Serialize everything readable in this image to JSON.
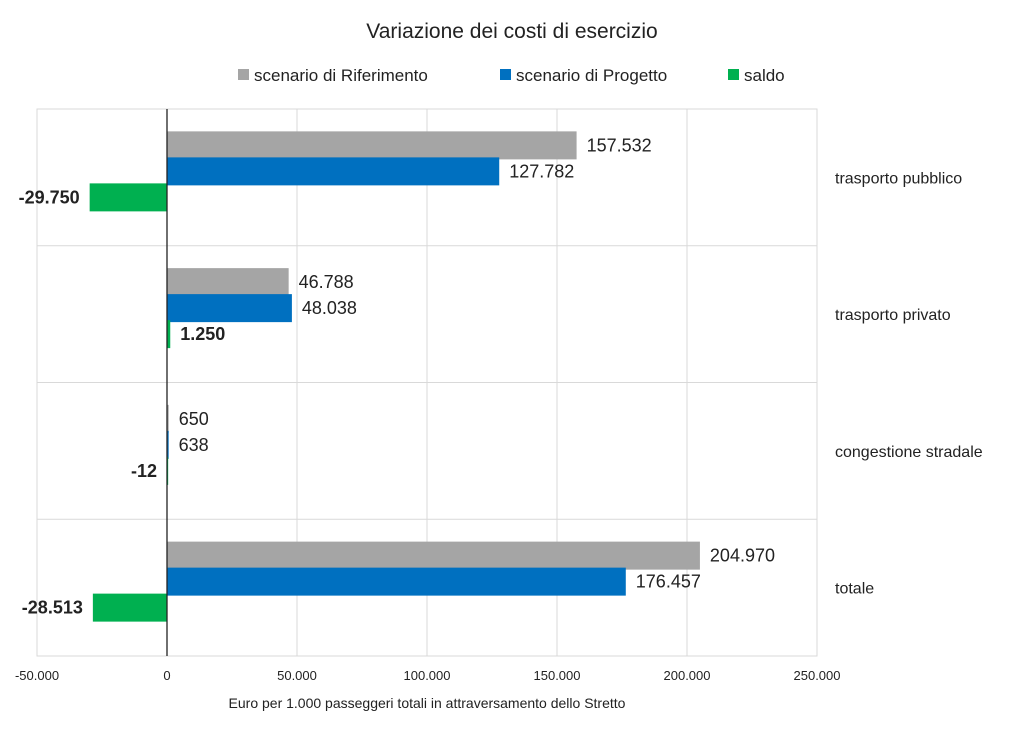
{
  "chart_data": {
    "type": "bar",
    "orientation": "horizontal",
    "title": "Variazione dei costi di esercizio",
    "xlabel": "Euro per 1.000 passeggeri totali in attraversamento dello Stretto",
    "xlim": [
      -50000,
      250000
    ],
    "xticks": [
      -50000,
      0,
      50000,
      100000,
      150000,
      200000,
      250000
    ],
    "xtick_labels": [
      "-50.000",
      "0",
      "50.000",
      "100.000",
      "150.000",
      "200.000",
      "250.000"
    ],
    "categories": [
      "trasporto pubblico",
      "trasporto privato",
      "congestione stradale",
      "totale"
    ],
    "series": [
      {
        "name": "scenario di Riferimento",
        "color": "#a5a5a5",
        "values": [
          157532,
          46788,
          650,
          204970
        ],
        "labels": [
          "157.532",
          "46.788",
          "650",
          "204.970"
        ],
        "label_bold": false
      },
      {
        "name": "scenario di Progetto",
        "color": "#0070c0",
        "values": [
          127782,
          48038,
          638,
          176457
        ],
        "labels": [
          "127.782",
          "48.038",
          "638",
          "176.457"
        ],
        "label_bold": false
      },
      {
        "name": "saldo",
        "color": "#00b050",
        "values": [
          -29750,
          1250,
          -12,
          -28513
        ],
        "labels": [
          "-29.750",
          "1.250",
          "-12",
          "-28.513"
        ],
        "label_bold": true
      }
    ],
    "legend_position": "top",
    "grid": true
  }
}
